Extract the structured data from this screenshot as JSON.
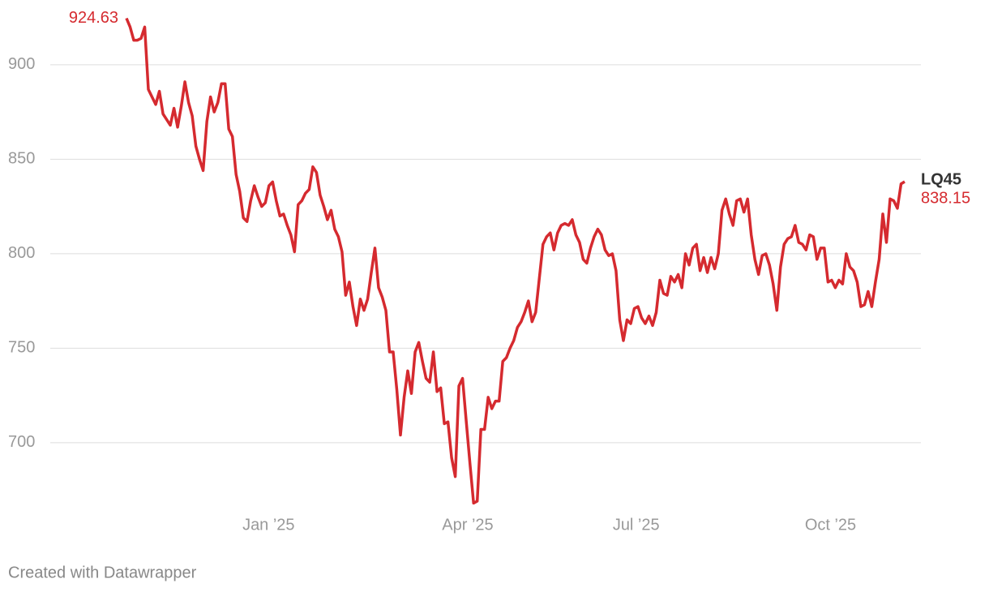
{
  "chart_data": {
    "type": "line",
    "series": [
      {
        "name": "LQ45",
        "color": "#d52a2f",
        "values": [
          924.63,
          920,
          913,
          913,
          914,
          920,
          887,
          883,
          879,
          886,
          874,
          871,
          868,
          877,
          867,
          878,
          891,
          880,
          873,
          857,
          850,
          844,
          870,
          883,
          875,
          880,
          890,
          890,
          866,
          862,
          842,
          833,
          819,
          817,
          828,
          836,
          830,
          825,
          827,
          836,
          838,
          828,
          820,
          821,
          815,
          810,
          801,
          826,
          828,
          832,
          834,
          846,
          843,
          831,
          825,
          818,
          823,
          813,
          809,
          801,
          778,
          785,
          772,
          762,
          776,
          770,
          776,
          790,
          803,
          782,
          777,
          770,
          748,
          748,
          728,
          704,
          724,
          738,
          726,
          748,
          753,
          743,
          734,
          732,
          748,
          727,
          729,
          710,
          711,
          692,
          682,
          730,
          734,
          711,
          689,
          668,
          669,
          707,
          707,
          724,
          718,
          722,
          722,
          743,
          745,
          750,
          754,
          761,
          764,
          769,
          775,
          764,
          769,
          787,
          805,
          809,
          811,
          802,
          811,
          815,
          816,
          815,
          818,
          810,
          806,
          797,
          795,
          803,
          809,
          813,
          810,
          802,
          799,
          800,
          791,
          765,
          754,
          765,
          763,
          771,
          772,
          766,
          763,
          767,
          762,
          769,
          786,
          779,
          778,
          788,
          785,
          789,
          782,
          800,
          794,
          803,
          805,
          791,
          798,
          790,
          798,
          792,
          800,
          823,
          829,
          821,
          815,
          828,
          829,
          822,
          829,
          810,
          797,
          789,
          799,
          800,
          794,
          784,
          770,
          793,
          805,
          808,
          809,
          815,
          806,
          805,
          802,
          810,
          809,
          797,
          803,
          803,
          785,
          786,
          782,
          786,
          784,
          800,
          793,
          791,
          785,
          772,
          773,
          780,
          772,
          785,
          797,
          821,
          806,
          829,
          828,
          824,
          837,
          838.15
        ]
      }
    ],
    "xlim": [
      0,
      213
    ],
    "xticks": [
      {
        "value": 38.9,
        "label": "Jan ’25"
      },
      {
        "value": 93.4,
        "label": "Apr ’25"
      },
      {
        "value": 139.5,
        "label": "Jul ’25"
      },
      {
        "value": 192.7,
        "label": "Oct ’25"
      }
    ],
    "ylim": [
      660,
      930
    ],
    "yticks": [
      700,
      750,
      800,
      850,
      900
    ],
    "grid": true
  },
  "credit": "Created with Datawrapper"
}
